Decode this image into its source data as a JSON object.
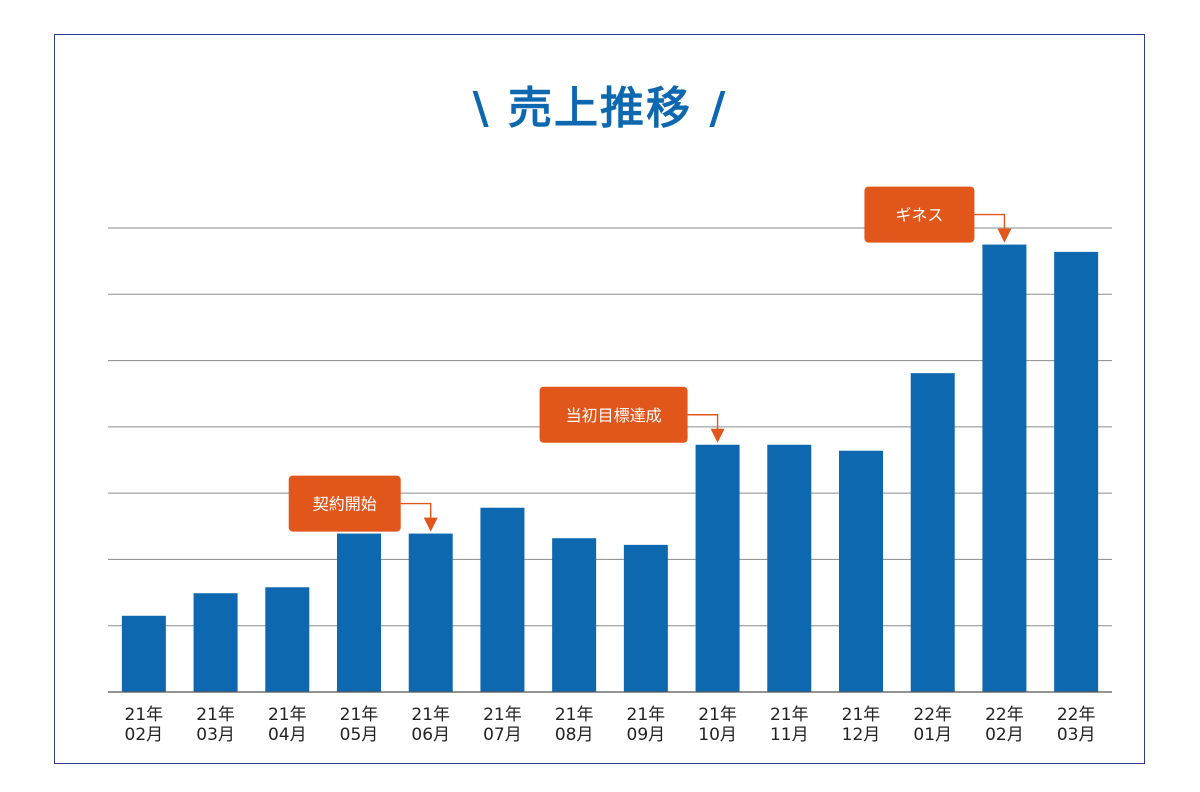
{
  "chart_data": {
    "type": "bar",
    "title": "\\ 売上推移 /",
    "categories": [
      [
        "21年",
        "02月"
      ],
      [
        "21年",
        "03月"
      ],
      [
        "21年",
        "04月"
      ],
      [
        "21年",
        "05月"
      ],
      [
        "21年",
        "06月"
      ],
      [
        "21年",
        "07月"
      ],
      [
        "21年",
        "08月"
      ],
      [
        "21年",
        "09月"
      ],
      [
        "21年",
        "10月"
      ],
      [
        "21年",
        "11月"
      ],
      [
        "21年",
        "12月"
      ],
      [
        "22年",
        "01月"
      ],
      [
        "22年",
        "02月"
      ],
      [
        "22年",
        "03月"
      ]
    ],
    "values": [
      1.15,
      1.49,
      1.58,
      2.39,
      2.39,
      2.78,
      2.32,
      2.22,
      3.73,
      3.73,
      3.64,
      4.81,
      6.75,
      6.64
    ],
    "ylim": [
      0,
      7
    ],
    "grid": true,
    "bar_color": "#0d68b0",
    "annotations": [
      {
        "label": "契約開始",
        "category_index": 4
      },
      {
        "label": "当初目標達成",
        "category_index": 8
      },
      {
        "label": "ギネス",
        "category_index": 12
      }
    ],
    "annotation_color": "#e0561b"
  }
}
